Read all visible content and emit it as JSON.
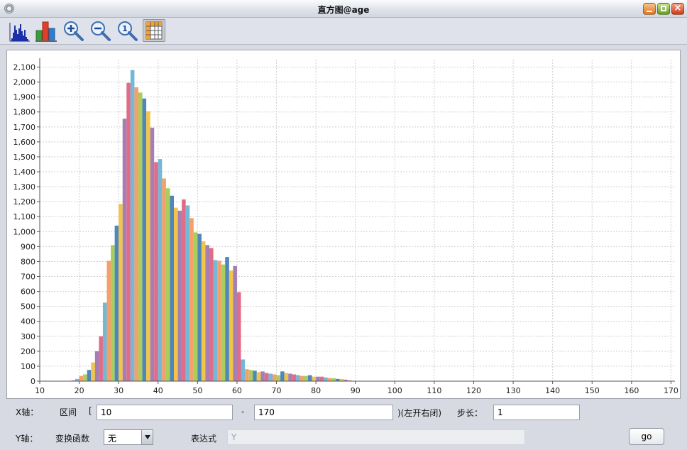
{
  "window": {
    "title": "直方图@age"
  },
  "toolbar": {
    "tools": [
      {
        "name": "histogram-icon"
      },
      {
        "name": "bar-chart-icon"
      },
      {
        "name": "zoom-in-icon"
      },
      {
        "name": "zoom-out-icon"
      },
      {
        "name": "zoom-reset-icon"
      },
      {
        "name": "table-icon"
      }
    ]
  },
  "chart_data": {
    "type": "bar",
    "title": "",
    "xlabel": "",
    "ylabel": "",
    "xlim": [
      10,
      171
    ],
    "ylim": [
      0,
      2150
    ],
    "x_ticks": [
      10,
      20,
      30,
      40,
      50,
      60,
      70,
      80,
      90,
      100,
      110,
      120,
      130,
      140,
      150,
      160,
      170
    ],
    "y_ticks": [
      0,
      100,
      200,
      300,
      400,
      500,
      600,
      700,
      800,
      900,
      1000,
      1100,
      1200,
      1300,
      1400,
      1500,
      1600,
      1700,
      1800,
      1900,
      2000,
      2100
    ],
    "y_tick_labels": [
      "0",
      "100",
      "200",
      "300",
      "400",
      "500",
      "600",
      "700",
      "800",
      "900",
      "1,000",
      "1,100",
      "1,200",
      "1,300",
      "1,400",
      "1,500",
      "1,600",
      "1,700",
      "1,800",
      "1,900",
      "2,000",
      "2,100"
    ],
    "grid": true,
    "bin_width": 1,
    "colors": [
      "#e06c87",
      "#74b8d8",
      "#f5a06a",
      "#a9ce5e",
      "#4f86bb",
      "#f0c548",
      "#a57fb4"
    ],
    "x": [
      18,
      19,
      20,
      21,
      22,
      23,
      24,
      25,
      26,
      27,
      28,
      29,
      30,
      31,
      32,
      33,
      34,
      35,
      36,
      37,
      38,
      39,
      40,
      41,
      42,
      43,
      44,
      45,
      46,
      47,
      48,
      49,
      50,
      51,
      52,
      53,
      54,
      55,
      56,
      57,
      58,
      59,
      60,
      61,
      62,
      63,
      64,
      65,
      66,
      67,
      68,
      69,
      70,
      71,
      72,
      73,
      74,
      75,
      76,
      77,
      78,
      79,
      80,
      81,
      82,
      83,
      84,
      85,
      86,
      87,
      88
    ],
    "values": [
      5,
      15,
      35,
      45,
      75,
      125,
      200,
      300,
      525,
      805,
      910,
      1040,
      1185,
      1755,
      1995,
      2080,
      1965,
      1930,
      1890,
      1805,
      1695,
      1465,
      1485,
      1355,
      1290,
      1240,
      1160,
      1140,
      1215,
      1175,
      1090,
      995,
      985,
      935,
      910,
      890,
      810,
      805,
      780,
      830,
      740,
      770,
      595,
      145,
      80,
      75,
      70,
      60,
      65,
      55,
      50,
      45,
      40,
      65,
      55,
      50,
      45,
      40,
      35,
      35,
      40,
      30,
      30,
      30,
      25,
      20,
      20,
      15,
      15,
      10,
      5
    ]
  },
  "controls": {
    "x_axis_label": "X轴：",
    "range_label": "区间",
    "bracket_open": "[",
    "range_from": "10",
    "dash": "-",
    "range_to": "170",
    "range_note": ")(左开右闭)",
    "step_label": "步长：",
    "step_value": "1",
    "y_axis_label": "Y轴：",
    "transform_label": "变换函数",
    "transform_value": "无",
    "expression_label": "表达式",
    "expression_placeholder": "Y",
    "go_label": "go"
  }
}
